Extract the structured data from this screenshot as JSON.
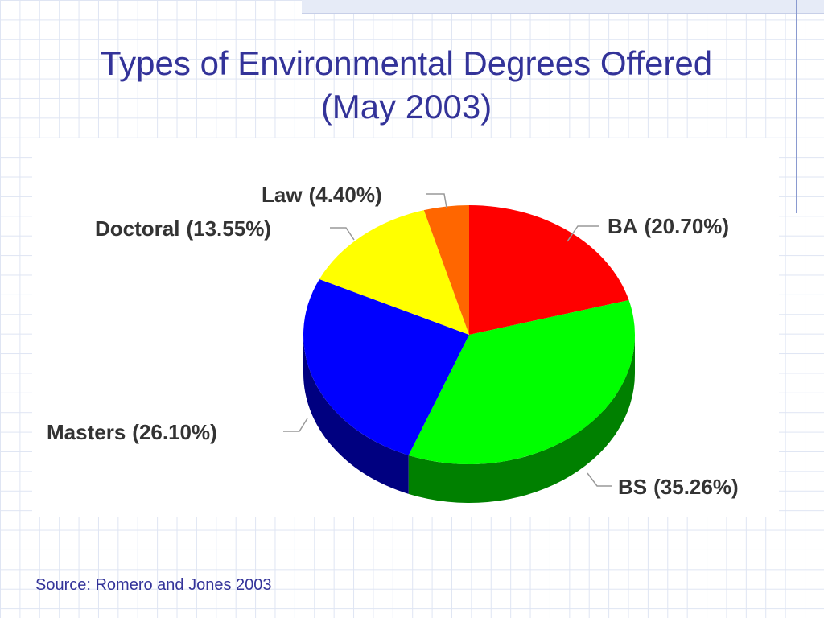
{
  "chart_data": {
    "type": "pie",
    "title": "Types of Environmental Degrees Offered (May 2003)",
    "categories": [
      "BA",
      "BS",
      "Masters",
      "Doctoral",
      "Law"
    ],
    "values": [
      20.7,
      35.26,
      26.1,
      13.55,
      4.4
    ],
    "value_labels": [
      "(20.70%)",
      "(35.26%)",
      "(26.10%)",
      "(13.55%)",
      "(4.40%)"
    ],
    "colors": [
      "#ff0000",
      "#00ff00",
      "#0000ff",
      "#ffff00",
      "#ff6600"
    ],
    "source": "Source:  Romero and Jones 2003"
  }
}
